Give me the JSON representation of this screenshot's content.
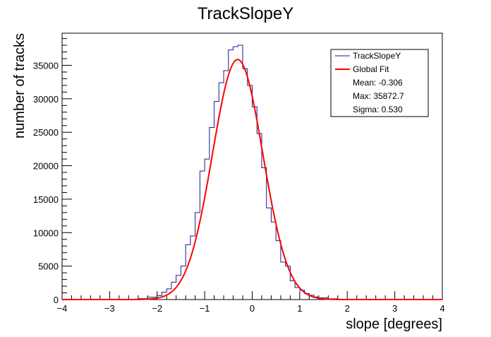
{
  "chart_data": {
    "type": "histogram",
    "title": "TrackSlopeY",
    "xlabel": "slope [degrees]",
    "ylabel": "number of tracks",
    "xlim": [
      -4,
      4
    ],
    "ylim": [
      0,
      39800
    ],
    "grid": false,
    "legend_position": "top-right",
    "x_ticks": [
      -4,
      -3,
      -2,
      -1,
      0,
      1,
      2,
      3,
      4
    ],
    "y_ticks": [
      0,
      5000,
      10000,
      15000,
      20000,
      25000,
      30000,
      35000
    ],
    "bin_edges": [
      -4.0,
      -3.8,
      -3.6,
      -3.4,
      -3.2,
      -3.0,
      -2.8,
      -2.6,
      -2.4,
      -2.2,
      -2.0,
      -1.8,
      -1.6,
      -1.4,
      -1.2,
      -1.0,
      -0.8,
      -0.6,
      -0.4,
      -0.2,
      0.0,
      0.2,
      0.4,
      0.6,
      0.8,
      1.0,
      1.2,
      1.4,
      1.6,
      1.8,
      2.0,
      2.2,
      2.4,
      2.6,
      2.8,
      3.0,
      3.2,
      3.4,
      3.6,
      3.8,
      4.0
    ],
    "histogram_bins": [
      {
        "x0": -4.0,
        "x1": -2.6,
        "y": 0
      },
      {
        "x0": -2.6,
        "x1": -2.4,
        "y": 50
      },
      {
        "x0": -2.4,
        "x1": -2.2,
        "y": 150
      },
      {
        "x0": -2.2,
        "x1": -2.0,
        "y": 350
      },
      {
        "x0": -2.0,
        "x1": -1.9,
        "y": 600
      },
      {
        "x0": -1.9,
        "x1": -1.8,
        "y": 1100
      },
      {
        "x0": -1.8,
        "x1": -1.7,
        "y": 1600
      },
      {
        "x0": -1.7,
        "x1": -1.6,
        "y": 2600
      },
      {
        "x0": -1.6,
        "x1": -1.5,
        "y": 3600
      },
      {
        "x0": -1.5,
        "x1": -1.4,
        "y": 5000
      },
      {
        "x0": -1.4,
        "x1": -1.3,
        "y": 8200
      },
      {
        "x0": -1.3,
        "x1": -1.2,
        "y": 9500
      },
      {
        "x0": -1.2,
        "x1": -1.1,
        "y": 13000
      },
      {
        "x0": -1.1,
        "x1": -1.0,
        "y": 19200
      },
      {
        "x0": -1.0,
        "x1": -0.9,
        "y": 21000
      },
      {
        "x0": -0.9,
        "x1": -0.8,
        "y": 25700
      },
      {
        "x0": -0.8,
        "x1": -0.7,
        "y": 29600
      },
      {
        "x0": -0.7,
        "x1": -0.6,
        "y": 32400
      },
      {
        "x0": -0.6,
        "x1": -0.5,
        "y": 34200
      },
      {
        "x0": -0.5,
        "x1": -0.4,
        "y": 37300
      },
      {
        "x0": -0.4,
        "x1": -0.3,
        "y": 37800
      },
      {
        "x0": -0.3,
        "x1": -0.2,
        "y": 38000
      },
      {
        "x0": -0.2,
        "x1": -0.1,
        "y": 34500
      },
      {
        "x0": -0.1,
        "x1": 0.0,
        "y": 32000
      },
      {
        "x0": 0.0,
        "x1": 0.1,
        "y": 28800
      },
      {
        "x0": 0.1,
        "x1": 0.2,
        "y": 24800
      },
      {
        "x0": 0.2,
        "x1": 0.3,
        "y": 19700
      },
      {
        "x0": 0.3,
        "x1": 0.4,
        "y": 13700
      },
      {
        "x0": 0.4,
        "x1": 0.5,
        "y": 11600
      },
      {
        "x0": 0.5,
        "x1": 0.6,
        "y": 8800
      },
      {
        "x0": 0.6,
        "x1": 0.7,
        "y": 5600
      },
      {
        "x0": 0.7,
        "x1": 0.8,
        "y": 5000
      },
      {
        "x0": 0.8,
        "x1": 0.9,
        "y": 2800
      },
      {
        "x0": 0.9,
        "x1": 1.0,
        "y": 1800
      },
      {
        "x0": 1.0,
        "x1": 1.1,
        "y": 1400
      },
      {
        "x0": 1.1,
        "x1": 1.2,
        "y": 900
      },
      {
        "x0": 1.2,
        "x1": 1.3,
        "y": 650
      },
      {
        "x0": 1.3,
        "x1": 1.4,
        "y": 400
      },
      {
        "x0": 1.4,
        "x1": 1.6,
        "y": 250
      },
      {
        "x0": 1.6,
        "x1": 1.8,
        "y": 120
      },
      {
        "x0": 1.8,
        "x1": 2.0,
        "y": 50
      },
      {
        "x0": 2.0,
        "x1": 4.0,
        "y": 0
      }
    ],
    "series": [
      {
        "name": "TrackSlopeY",
        "kind": "histogram",
        "color": "#1a1a8c"
      },
      {
        "name": "Global Fit",
        "kind": "gaussian",
        "color": "#ff0000",
        "mean": -0.306,
        "max": 35872.7,
        "sigma": 0.53
      }
    ],
    "legend": {
      "entries": [
        {
          "label": "TrackSlopeY",
          "color": "#1a1a8c",
          "style": "thin-line"
        },
        {
          "label": "Global Fit",
          "color": "#ff0000",
          "style": "thick-line"
        }
      ],
      "stats": [
        "Mean: -0.306",
        "Max: 35872.7",
        "Sigma: 0.530"
      ]
    }
  }
}
